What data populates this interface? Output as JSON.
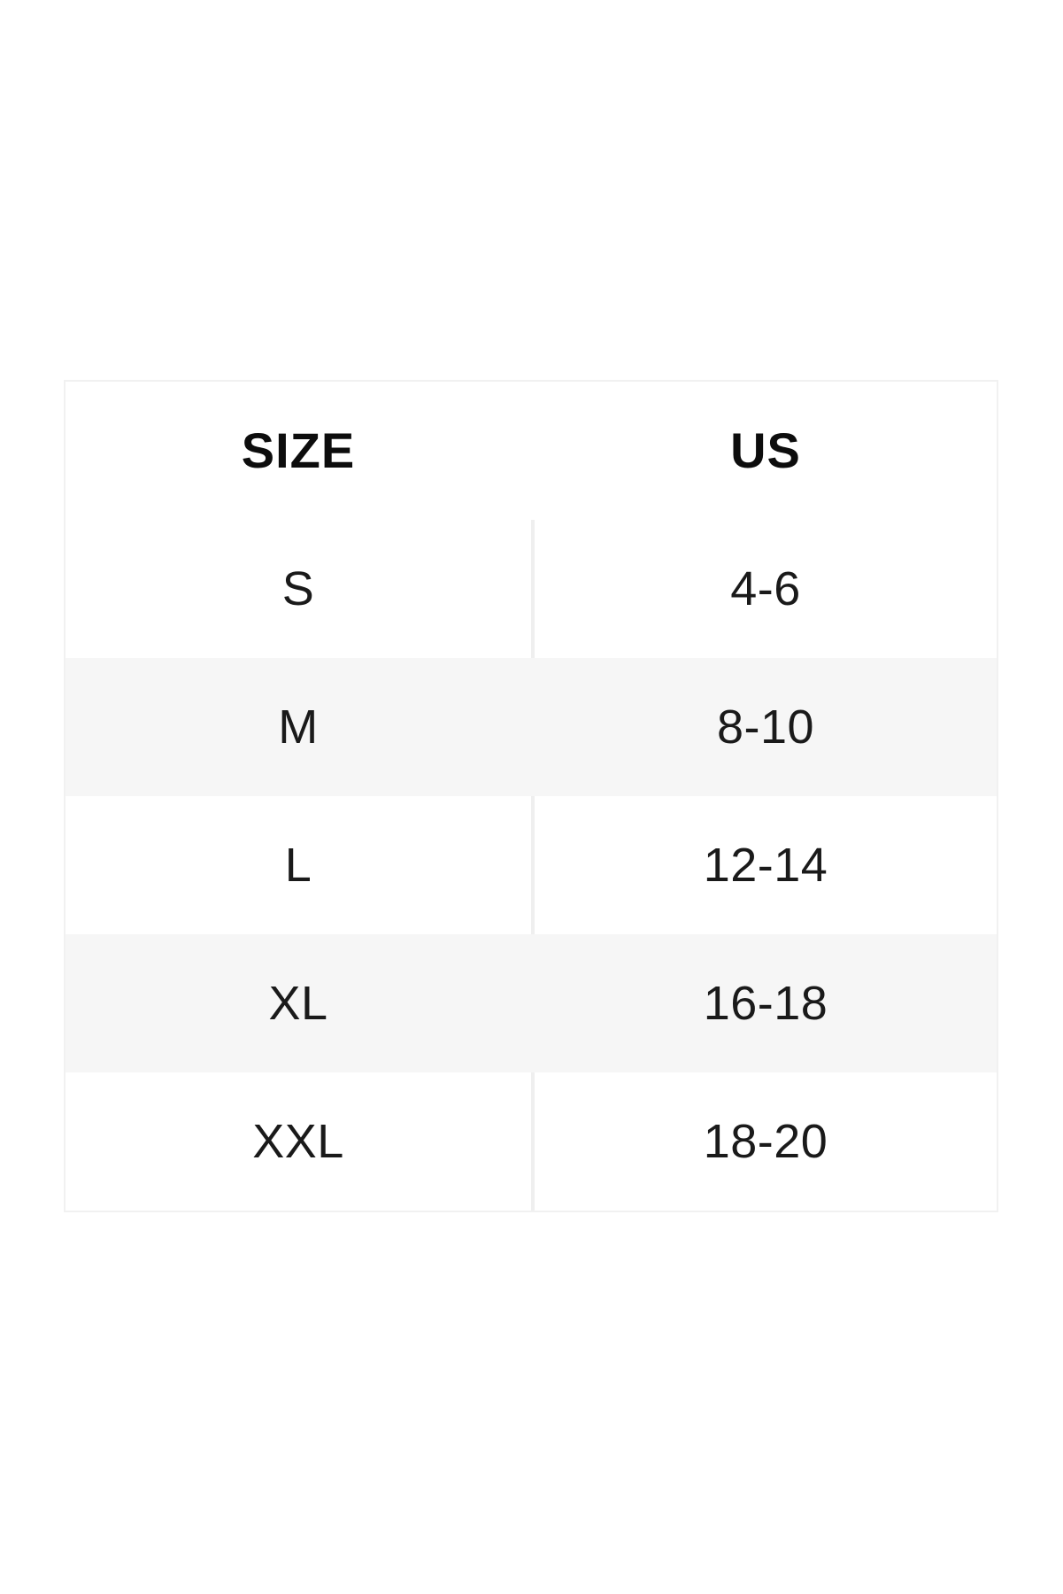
{
  "table": {
    "headers": {
      "size": "SIZE",
      "us": "US"
    },
    "rows": [
      {
        "size": "S",
        "us": "4-6"
      },
      {
        "size": "M",
        "us": "8-10"
      },
      {
        "size": "L",
        "us": "12-14"
      },
      {
        "size": "XL",
        "us": "16-18"
      },
      {
        "size": "XXL",
        "us": "18-20"
      }
    ],
    "colors": {
      "header_bg": "#f6f6f6",
      "row_alt_bg": "#f6f6f6",
      "row_bg": "#ffffff",
      "divider": "#efefef",
      "border": "#f1f1f1",
      "text": "#1a1a1a"
    }
  }
}
